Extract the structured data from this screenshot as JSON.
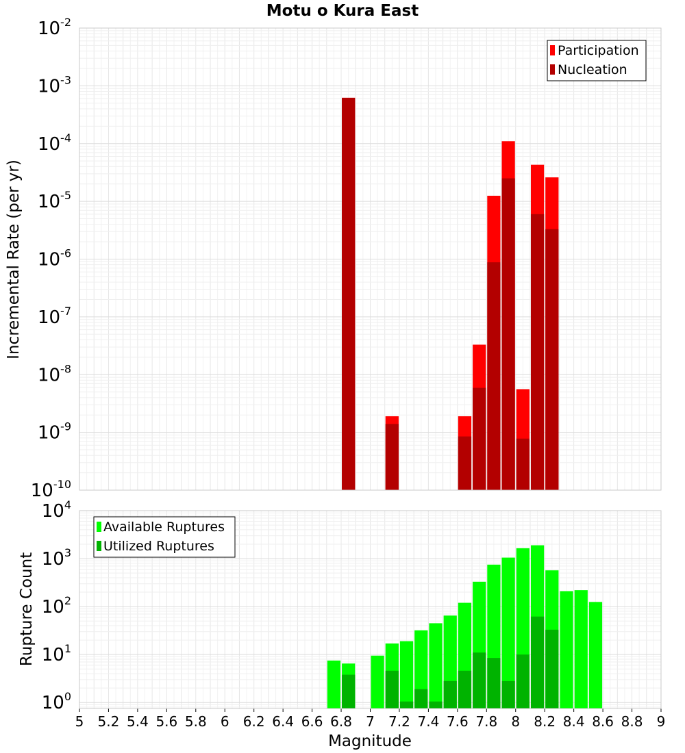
{
  "chart_data": [
    {
      "type": "bar",
      "title": "Motu o Kura East",
      "xlabel": "",
      "ylabel": "Incremental Rate (per yr)",
      "yscale": "log",
      "xlim": [
        5,
        9
      ],
      "ylim": [
        1e-10,
        0.01
      ],
      "ytick_exponents": [
        -2,
        -3,
        -4,
        -5,
        -6,
        -7,
        -8,
        -9,
        -10
      ],
      "grid": true,
      "legend_position": "top-right",
      "bar_width": 0.1,
      "series": [
        {
          "name": "Participation",
          "color": "#ff0000",
          "x": [
            6.85,
            7.15,
            7.65,
            7.75,
            7.85,
            7.95,
            8.05,
            8.15,
            8.25
          ],
          "values": [
            0.00062,
            1.9e-09,
            1.9e-09,
            3.3e-08,
            1.25e-05,
            0.00011,
            5.6e-09,
            4.3e-05,
            2.6e-05
          ]
        },
        {
          "name": "Nucleation",
          "color": "#b30000",
          "x": [
            6.85,
            7.15,
            7.65,
            7.75,
            7.85,
            7.95,
            8.05,
            8.15,
            8.25
          ],
          "values": [
            0.00062,
            1.4e-09,
            8.5e-10,
            5.9e-09,
            8.8e-07,
            2.5e-05,
            7.8e-10,
            6e-06,
            3.3e-06
          ]
        }
      ]
    },
    {
      "type": "bar",
      "title": "",
      "xlabel": "Magnitude",
      "ylabel": "Rupture Count",
      "yscale": "log",
      "xlim": [
        5,
        9
      ],
      "ylim": [
        0.75,
        10000
      ],
      "ytick_exponents": [
        4,
        3,
        2,
        1,
        0
      ],
      "xticks": [
        "5",
        "5.2",
        "5.4",
        "5.6",
        "5.8",
        "6",
        "6.2",
        "6.4",
        "6.6",
        "6.8",
        "7",
        "7.2",
        "7.4",
        "7.6",
        "7.8",
        "8",
        "8.2",
        "8.4",
        "8.6",
        "8.8",
        "9"
      ],
      "grid": true,
      "legend_position": "top-left",
      "bar_width": 0.1,
      "series": [
        {
          "name": "Available Ruptures",
          "color": "#00ff00",
          "x": [
            6.75,
            6.85,
            7.05,
            7.15,
            7.25,
            7.35,
            7.45,
            7.55,
            7.65,
            7.75,
            7.85,
            7.95,
            8.05,
            8.15,
            8.25,
            8.35,
            8.45,
            8.55
          ],
          "values": [
            7.5,
            6.5,
            9.5,
            17,
            19,
            32,
            45,
            65,
            120,
            330,
            750,
            1050,
            1650,
            1900,
            570,
            210,
            220,
            125
          ]
        },
        {
          "name": "Utilized Ruptures",
          "color": "#00b300",
          "x": [
            6.85,
            7.15,
            7.25,
            7.35,
            7.45,
            7.55,
            7.65,
            7.75,
            7.85,
            7.95,
            8.05,
            8.15,
            8.25
          ],
          "values": [
            3.8,
            4.6,
            1.05,
            1.9,
            1.05,
            2.8,
            4.6,
            11,
            8.5,
            2.8,
            10,
            62,
            33
          ]
        }
      ]
    }
  ]
}
